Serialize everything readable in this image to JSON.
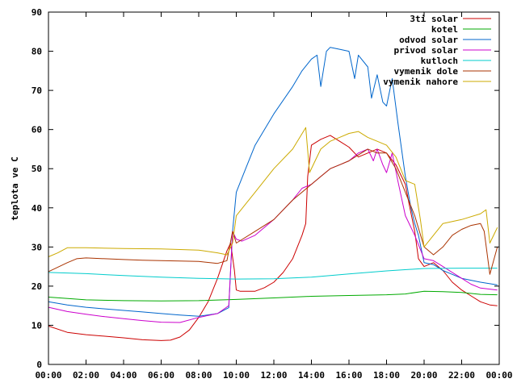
{
  "chart_data": {
    "type": "line",
    "title": "",
    "xlabel": "",
    "ylabel": "teplota ve C",
    "ylim": [
      0,
      90
    ],
    "xlim": [
      0,
      24
    ],
    "grid": false,
    "legend_position": "top-right",
    "x_ticks": [
      {
        "value": 0,
        "label": "00:00"
      },
      {
        "value": 2,
        "label": "02:00"
      },
      {
        "value": 4,
        "label": "04:00"
      },
      {
        "value": 6,
        "label": "06:00"
      },
      {
        "value": 8,
        "label": "08:00"
      },
      {
        "value": 10,
        "label": "10:00"
      },
      {
        "value": 12,
        "label": "12:00"
      },
      {
        "value": 14,
        "label": "14:00"
      },
      {
        "value": 16,
        "label": "16:00"
      },
      {
        "value": 18,
        "label": "18:00"
      },
      {
        "value": 20,
        "label": "20:00"
      },
      {
        "value": 22,
        "label": "22:00"
      },
      {
        "value": 24,
        "label": "00:00"
      }
    ],
    "y_ticks": [
      {
        "value": 0,
        "label": "0"
      },
      {
        "value": 10,
        "label": "10"
      },
      {
        "value": 20,
        "label": "20"
      },
      {
        "value": 30,
        "label": "30"
      },
      {
        "value": 40,
        "label": "40"
      },
      {
        "value": 50,
        "label": "50"
      },
      {
        "value": 60,
        "label": "60"
      },
      {
        "value": 70,
        "label": "70"
      },
      {
        "value": 80,
        "label": "80"
      },
      {
        "value": 90,
        "label": "90"
      }
    ],
    "series": [
      {
        "name": "3ti solar",
        "color": "#cc0000",
        "points": [
          [
            0,
            9.8
          ],
          [
            1,
            8.2
          ],
          [
            2,
            7.6
          ],
          [
            3,
            7.2
          ],
          [
            4,
            6.8
          ],
          [
            5,
            6.3
          ],
          [
            6,
            6.1
          ],
          [
            6.5,
            6.2
          ],
          [
            7,
            7
          ],
          [
            7.5,
            8.8
          ],
          [
            8,
            12
          ],
          [
            8.5,
            16
          ],
          [
            9,
            22
          ],
          [
            9.5,
            29
          ],
          [
            9.7,
            31
          ],
          [
            9.9,
            24
          ],
          [
            10,
            19
          ],
          [
            10.2,
            18.7
          ],
          [
            11,
            18.7
          ],
          [
            11.5,
            19.6
          ],
          [
            12,
            21
          ],
          [
            12.5,
            23.5
          ],
          [
            13,
            27
          ],
          [
            13.5,
            33
          ],
          [
            13.7,
            36
          ],
          [
            13.8,
            48
          ],
          [
            14,
            56
          ],
          [
            14.5,
            57.5
          ],
          [
            15,
            58.5
          ],
          [
            15.5,
            57
          ],
          [
            16,
            55.5
          ],
          [
            16.5,
            53
          ],
          [
            17,
            54
          ],
          [
            17.5,
            55
          ],
          [
            18,
            54
          ],
          [
            18.5,
            51
          ],
          [
            19,
            46
          ],
          [
            19.2,
            41
          ],
          [
            19.5,
            34
          ],
          [
            19.7,
            27
          ],
          [
            20,
            25
          ],
          [
            20.5,
            26
          ],
          [
            21,
            24
          ],
          [
            21.5,
            21
          ],
          [
            22,
            19
          ],
          [
            22.5,
            17.5
          ],
          [
            23,
            16
          ],
          [
            23.5,
            15.2
          ],
          [
            23.9,
            15
          ]
        ]
      },
      {
        "name": "kotel",
        "color": "#00aa00",
        "points": [
          [
            0,
            17.2
          ],
          [
            2,
            16.5
          ],
          [
            4,
            16.3
          ],
          [
            6,
            16.2
          ],
          [
            8,
            16.3
          ],
          [
            10,
            16.6
          ],
          [
            12,
            17
          ],
          [
            14,
            17.4
          ],
          [
            16,
            17.6
          ],
          [
            18,
            17.8
          ],
          [
            19,
            18
          ],
          [
            20,
            18.7
          ],
          [
            21,
            18.6
          ],
          [
            22,
            18.4
          ],
          [
            23,
            17.9
          ],
          [
            23.9,
            17.8
          ]
        ]
      },
      {
        "name": "odvod solar",
        "color": "#0066cc",
        "points": [
          [
            0,
            16
          ],
          [
            1,
            15.2
          ],
          [
            2,
            14.6
          ],
          [
            3,
            14.2
          ],
          [
            4,
            13.8
          ],
          [
            5,
            13.4
          ],
          [
            6,
            13
          ],
          [
            7,
            12.6
          ],
          [
            8,
            12.3
          ],
          [
            9,
            13
          ],
          [
            9.6,
            14.5
          ],
          [
            9.8,
            34
          ],
          [
            10,
            44
          ],
          [
            10.5,
            50
          ],
          [
            11,
            56
          ],
          [
            12,
            64
          ],
          [
            13,
            71
          ],
          [
            13.5,
            75
          ],
          [
            14,
            78
          ],
          [
            14.3,
            79
          ],
          [
            14.5,
            71
          ],
          [
            14.8,
            80
          ],
          [
            15,
            81
          ],
          [
            15.5,
            80.5
          ],
          [
            16,
            80
          ],
          [
            16.3,
            73
          ],
          [
            16.5,
            79
          ],
          [
            17,
            76
          ],
          [
            17.2,
            68
          ],
          [
            17.5,
            74
          ],
          [
            17.8,
            67
          ],
          [
            18,
            66
          ],
          [
            18.3,
            73
          ],
          [
            18.6,
            62
          ],
          [
            19,
            48
          ],
          [
            19.3,
            40
          ],
          [
            19.5,
            36
          ],
          [
            19.7,
            33
          ],
          [
            20,
            26
          ],
          [
            20.5,
            25.5
          ],
          [
            21,
            24
          ],
          [
            21.5,
            23
          ],
          [
            22,
            22
          ],
          [
            22.5,
            21.5
          ],
          [
            23,
            21
          ],
          [
            23.9,
            20.3
          ]
        ]
      },
      {
        "name": "privod solar",
        "color": "#cc00cc",
        "points": [
          [
            0,
            14.6
          ],
          [
            1,
            13.5
          ],
          [
            2,
            12.8
          ],
          [
            3,
            12.2
          ],
          [
            4,
            11.7
          ],
          [
            5,
            11.2
          ],
          [
            6,
            10.8
          ],
          [
            7,
            10.7
          ],
          [
            8,
            12
          ],
          [
            9,
            13
          ],
          [
            9.6,
            15
          ],
          [
            9.8,
            34
          ],
          [
            10,
            32
          ],
          [
            10.3,
            31.5
          ],
          [
            11,
            33
          ],
          [
            12,
            37
          ],
          [
            13,
            42
          ],
          [
            13.5,
            45
          ],
          [
            14,
            46
          ],
          [
            14.5,
            48
          ],
          [
            15,
            50
          ],
          [
            15.5,
            51
          ],
          [
            16,
            52
          ],
          [
            16.5,
            54
          ],
          [
            17,
            55
          ],
          [
            17.3,
            52
          ],
          [
            17.5,
            55
          ],
          [
            17.8,
            51
          ],
          [
            18,
            49
          ],
          [
            18.3,
            54
          ],
          [
            18.6,
            47
          ],
          [
            19,
            38
          ],
          [
            19.5,
            33
          ],
          [
            20,
            27
          ],
          [
            20.5,
            26.5
          ],
          [
            21,
            25
          ],
          [
            21.5,
            23.5
          ],
          [
            22,
            22
          ],
          [
            22.5,
            20.5
          ],
          [
            23,
            19.5
          ],
          [
            23.9,
            19
          ]
        ]
      },
      {
        "name": "kutloch",
        "color": "#00cccc",
        "points": [
          [
            0,
            23.5
          ],
          [
            2,
            23.2
          ],
          [
            4,
            22.7
          ],
          [
            6,
            22.3
          ],
          [
            8,
            22
          ],
          [
            10,
            21.8
          ],
          [
            12,
            21.9
          ],
          [
            14,
            22.3
          ],
          [
            16,
            23.1
          ],
          [
            18,
            23.9
          ],
          [
            20,
            24.5
          ],
          [
            22,
            24.6
          ],
          [
            23.9,
            24.6
          ]
        ]
      },
      {
        "name": "vymenik dole",
        "color": "#aa3300",
        "points": [
          [
            0,
            23.7
          ],
          [
            1,
            26
          ],
          [
            1.5,
            27
          ],
          [
            2,
            27.2
          ],
          [
            3,
            27
          ],
          [
            4,
            26.8
          ],
          [
            5,
            26.6
          ],
          [
            6,
            26.5
          ],
          [
            7,
            26.4
          ],
          [
            8,
            26.3
          ],
          [
            9,
            25.8
          ],
          [
            9.5,
            26.5
          ],
          [
            9.8,
            34
          ],
          [
            10,
            31
          ],
          [
            11,
            34
          ],
          [
            12,
            37
          ],
          [
            13,
            42
          ],
          [
            14,
            46
          ],
          [
            14.5,
            48
          ],
          [
            15,
            50
          ],
          [
            15.5,
            51
          ],
          [
            16,
            52
          ],
          [
            16.5,
            53.5
          ],
          [
            17,
            55
          ],
          [
            17.5,
            54
          ],
          [
            18,
            54
          ],
          [
            18.5,
            50
          ],
          [
            19,
            44
          ],
          [
            19.5,
            38
          ],
          [
            20,
            30
          ],
          [
            20.5,
            28
          ],
          [
            21,
            30
          ],
          [
            21.5,
            33
          ],
          [
            22,
            34.5
          ],
          [
            22.5,
            35.5
          ],
          [
            23,
            36
          ],
          [
            23.2,
            34
          ],
          [
            23.5,
            23
          ],
          [
            23.9,
            30
          ]
        ]
      },
      {
        "name": "vymenik nahore",
        "color": "#ccaa00",
        "points": [
          [
            0,
            27.5
          ],
          [
            0.5,
            28.5
          ],
          [
            1,
            29.8
          ],
          [
            2,
            29.8
          ],
          [
            4,
            29.6
          ],
          [
            6,
            29.5
          ],
          [
            8,
            29.2
          ],
          [
            9,
            28.5
          ],
          [
            9.5,
            28
          ],
          [
            9.8,
            31
          ],
          [
            10,
            38
          ],
          [
            11,
            44
          ],
          [
            12,
            50
          ],
          [
            13,
            55
          ],
          [
            13.7,
            60.5
          ],
          [
            13.9,
            49
          ],
          [
            14.2,
            52
          ],
          [
            14.5,
            55
          ],
          [
            15,
            57
          ],
          [
            15.5,
            58
          ],
          [
            16,
            59
          ],
          [
            16.5,
            59.5
          ],
          [
            17,
            58
          ],
          [
            17.5,
            57
          ],
          [
            18,
            56
          ],
          [
            18.5,
            53
          ],
          [
            19,
            47
          ],
          [
            19.5,
            46
          ],
          [
            19.8,
            37
          ],
          [
            20,
            30
          ],
          [
            20.5,
            33
          ],
          [
            21,
            36
          ],
          [
            22,
            37
          ],
          [
            23,
            38.5
          ],
          [
            23.3,
            39.5
          ],
          [
            23.5,
            31
          ],
          [
            23.9,
            35
          ]
        ]
      }
    ]
  }
}
